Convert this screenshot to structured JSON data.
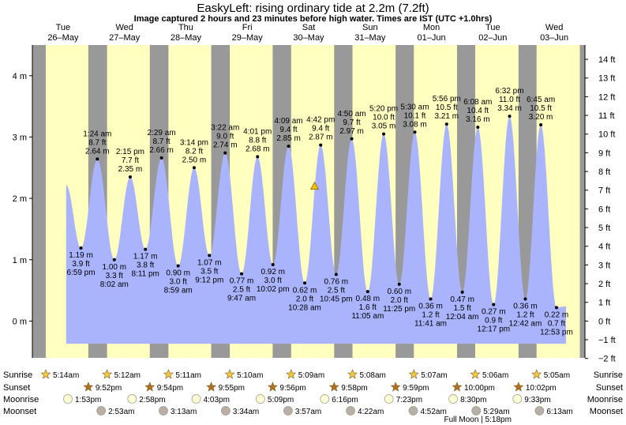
{
  "title": "EaskyLeft: rising  ordinary tide at 2.2m (7.2ft)",
  "subtitle": "Image captured 2 hours and 23 minutes before high water. Times are IST (UTC +1.0hrs)",
  "colors": {
    "day": "#ffffc0",
    "night": "#999999",
    "tide": "#aab4fc",
    "day_label": "#e00000",
    "sun": "#f5c842",
    "sunset": "#b07020",
    "moon": "#ffffd8",
    "moonset": "#b8b0a8"
  },
  "icons": {
    "sunrise": "sun-star-icon",
    "sunset": "sunset-star-icon",
    "moonrise": "moonrise-disc-icon",
    "moonset": "moonset-disc-icon",
    "current": "current-tide-triangle-icon"
  },
  "chart_data": {
    "type": "area",
    "title": "EaskyLeft: rising  ordinary tide at 2.2m (7.2ft)",
    "y_left_unit": "m",
    "y_right_unit": "ft",
    "y_left_ticks": [
      "4 m",
      "3 m",
      "2 m",
      "1 m",
      "0 m"
    ],
    "y_right_ticks": [
      "14 ft",
      "13 ft",
      "12 ft",
      "11 ft",
      "10 ft",
      "9 ft",
      "8 ft",
      "7 ft",
      "6 ft",
      "5 ft",
      "4 ft",
      "3 ft",
      "2 ft",
      "1 ft",
      "0 ft",
      "−1 ft",
      "−2 ft"
    ],
    "ylim_m": [
      -0.6,
      4.5
    ],
    "time_range": [
      "2026-05-26 00:00",
      "2026-06-04 00:00"
    ],
    "current_level_m": 2.2,
    "current_time": "2026-05-30 14:19",
    "days": [
      {
        "weekday": "Tue",
        "date": "26–May"
      },
      {
        "weekday": "Wed",
        "date": "27–May"
      },
      {
        "weekday": "Thu",
        "date": "28–May"
      },
      {
        "weekday": "Fri",
        "date": "29–May"
      },
      {
        "weekday": "Sat",
        "date": "30–May"
      },
      {
        "weekday": "Sun",
        "date": "31–May"
      },
      {
        "weekday": "Mon",
        "date": "01–Jun"
      },
      {
        "weekday": "Tue",
        "date": "02–Jun"
      },
      {
        "weekday": "Wed",
        "date": "03–Jun"
      }
    ],
    "tides": [
      {
        "type": "low",
        "time": "6:59 pm",
        "datetime": "2026-05-26 18:59",
        "m": 1.19,
        "m_label": "1.19 m",
        "ft_label": "3.9 ft"
      },
      {
        "type": "high",
        "time": "1:24 am",
        "datetime": "2026-05-27 01:24",
        "m": 2.64,
        "m_label": "2.64 m",
        "ft_label": "8.7 ft"
      },
      {
        "type": "low",
        "time": "8:02 am",
        "datetime": "2026-05-27 08:02",
        "m": 1.0,
        "m_label": "1.00 m",
        "ft_label": "3.3 ft"
      },
      {
        "type": "high",
        "time": "2:15 pm",
        "datetime": "2026-05-27 14:15",
        "m": 2.35,
        "m_label": "2.35 m",
        "ft_label": "7.7 ft"
      },
      {
        "type": "low",
        "time": "8:11 pm",
        "datetime": "2026-05-27 20:11",
        "m": 1.17,
        "m_label": "1.17 m",
        "ft_label": "3.8 ft"
      },
      {
        "type": "high",
        "time": "2:29 am",
        "datetime": "2026-05-28 02:29",
        "m": 2.66,
        "m_label": "2.66 m",
        "ft_label": "8.7 ft"
      },
      {
        "type": "low",
        "time": "8:59 am",
        "datetime": "2026-05-28 08:59",
        "m": 0.9,
        "m_label": "0.90 m",
        "ft_label": "3.0 ft"
      },
      {
        "type": "high",
        "time": "3:14 pm",
        "datetime": "2026-05-28 15:14",
        "m": 2.5,
        "m_label": "2.50 m",
        "ft_label": "8.2 ft"
      },
      {
        "type": "low",
        "time": "9:12 pm",
        "datetime": "2026-05-28 21:12",
        "m": 1.07,
        "m_label": "1.07 m",
        "ft_label": "3.5 ft"
      },
      {
        "type": "high",
        "time": "3:22 am",
        "datetime": "2026-05-29 03:22",
        "m": 2.74,
        "m_label": "2.74 m",
        "ft_label": "9.0 ft"
      },
      {
        "type": "low",
        "time": "9:47 am",
        "datetime": "2026-05-29 09:47",
        "m": 0.77,
        "m_label": "0.77 m",
        "ft_label": "2.5 ft"
      },
      {
        "type": "high",
        "time": "4:01 pm",
        "datetime": "2026-05-29 16:01",
        "m": 2.68,
        "m_label": "2.68 m",
        "ft_label": "8.8 ft"
      },
      {
        "type": "low",
        "time": "10:02 pm",
        "datetime": "2026-05-29 22:02",
        "m": 0.92,
        "m_label": "0.92 m",
        "ft_label": "3.0 ft"
      },
      {
        "type": "high",
        "time": "4:09 am",
        "datetime": "2026-05-30 04:09",
        "m": 2.85,
        "m_label": "2.85 m",
        "ft_label": "9.4 ft"
      },
      {
        "type": "low",
        "time": "10:28 am",
        "datetime": "2026-05-30 10:28",
        "m": 0.62,
        "m_label": "0.62 m",
        "ft_label": "2.0 ft"
      },
      {
        "type": "high",
        "time": "4:42 pm",
        "datetime": "2026-05-30 16:42",
        "m": 2.87,
        "m_label": "2.87 m",
        "ft_label": "9.4 ft"
      },
      {
        "type": "low",
        "time": "10:45 pm",
        "datetime": "2026-05-30 22:45",
        "m": 0.76,
        "m_label": "0.76 m",
        "ft_label": "2.5 ft"
      },
      {
        "type": "high",
        "time": "4:50 am",
        "datetime": "2026-05-31 04:50",
        "m": 2.97,
        "m_label": "2.97 m",
        "ft_label": "9.7 ft"
      },
      {
        "type": "low",
        "time": "11:05 am",
        "datetime": "2026-05-31 11:05",
        "m": 0.48,
        "m_label": "0.48 m",
        "ft_label": "1.6 ft"
      },
      {
        "type": "high",
        "time": "5:20 pm",
        "datetime": "2026-05-31 17:20",
        "m": 3.05,
        "m_label": "3.05 m",
        "ft_label": "10.0 ft"
      },
      {
        "type": "low",
        "time": "11:25 pm",
        "datetime": "2026-05-31 23:25",
        "m": 0.6,
        "m_label": "0.60 m",
        "ft_label": "2.0 ft"
      },
      {
        "type": "high",
        "time": "5:30 am",
        "datetime": "2026-06-01 05:30",
        "m": 3.08,
        "m_label": "3.08 m",
        "ft_label": "10.1 ft"
      },
      {
        "type": "low",
        "time": "11:41 am",
        "datetime": "2026-06-01 11:41",
        "m": 0.36,
        "m_label": "0.36 m",
        "ft_label": "1.2 ft"
      },
      {
        "type": "high",
        "time": "5:56 pm",
        "datetime": "2026-06-01 17:56",
        "m": 3.21,
        "m_label": "3.21 m",
        "ft_label": "10.5 ft"
      },
      {
        "type": "low",
        "time": "12:04 am",
        "datetime": "2026-06-02 00:04",
        "m": 0.47,
        "m_label": "0.47 m",
        "ft_label": "1.5 ft"
      },
      {
        "type": "high",
        "time": "6:08 am",
        "datetime": "2026-06-02 06:08",
        "m": 3.16,
        "m_label": "3.16 m",
        "ft_label": "10.4 ft"
      },
      {
        "type": "low",
        "time": "12:17 pm",
        "datetime": "2026-06-02 12:17",
        "m": 0.27,
        "m_label": "0.27 m",
        "ft_label": "0.9 ft"
      },
      {
        "type": "high",
        "time": "6:32 pm",
        "datetime": "2026-06-02 18:32",
        "m": 3.34,
        "m_label": "3.34 m",
        "ft_label": "11.0 ft"
      },
      {
        "type": "low",
        "time": "12:42 am",
        "datetime": "2026-06-03 00:42",
        "m": 0.36,
        "m_label": "0.36 m",
        "ft_label": "1.2 ft"
      },
      {
        "type": "high",
        "time": "6:45 am",
        "datetime": "2026-06-03 06:45",
        "m": 3.2,
        "m_label": "3.20 m",
        "ft_label": "10.5 ft"
      },
      {
        "type": "low",
        "time": "12:53 pm",
        "datetime": "2026-06-03 12:53",
        "m": 0.22,
        "m_label": "0.22 m",
        "ft_label": "0.7 ft"
      }
    ],
    "sun": [
      {
        "sunrise": "5:14am",
        "sunset": null
      },
      {
        "sunrise": "5:12am",
        "sunset": "9:52pm"
      },
      {
        "sunrise": "5:11am",
        "sunset": "9:54pm"
      },
      {
        "sunrise": "5:10am",
        "sunset": "9:55pm"
      },
      {
        "sunrise": "5:09am",
        "sunset": "9:56pm"
      },
      {
        "sunrise": "5:08am",
        "sunset": "9:58pm"
      },
      {
        "sunrise": "5:07am",
        "sunset": "9:59pm"
      },
      {
        "sunrise": "5:06am",
        "sunset": "10:00pm"
      },
      {
        "sunrise": "5:05am",
        "sunset": "10:02pm"
      }
    ],
    "moon": {
      "rises": [
        {
          "time": "1:53pm",
          "datetime": "2026-05-26 13:53"
        },
        {
          "time": "2:58pm",
          "datetime": "2026-05-27 14:58"
        },
        {
          "time": "4:03pm",
          "datetime": "2026-05-28 16:03"
        },
        {
          "time": "5:09pm",
          "datetime": "2026-05-29 17:09"
        },
        {
          "time": "6:16pm",
          "datetime": "2026-05-30 18:16"
        },
        {
          "time": "7:23pm",
          "datetime": "2026-05-31 19:23"
        },
        {
          "time": "8:30pm",
          "datetime": "2026-06-01 20:30"
        },
        {
          "time": "9:33pm",
          "datetime": "2026-06-02 21:33"
        }
      ],
      "sets": [
        {
          "time": "2:53am",
          "datetime": "2026-05-27 02:53"
        },
        {
          "time": "3:13am",
          "datetime": "2026-05-28 03:13"
        },
        {
          "time": "3:34am",
          "datetime": "2026-05-29 03:34"
        },
        {
          "time": "3:57am",
          "datetime": "2026-05-30 03:57"
        },
        {
          "time": "4:22am",
          "datetime": "2026-05-31 04:22"
        },
        {
          "time": "4:52am",
          "datetime": "2026-06-01 04:52"
        },
        {
          "time": "5:29am",
          "datetime": "2026-06-02 05:29"
        },
        {
          "time": "6:13am",
          "datetime": "2026-06-03 06:13"
        }
      ],
      "full_moon": "Full Moon | 5:18pm"
    },
    "row_labels": {
      "sunrise": "Sunrise",
      "sunset": "Sunset",
      "moonrise": "Moonrise",
      "moonset": "Moonset"
    }
  }
}
